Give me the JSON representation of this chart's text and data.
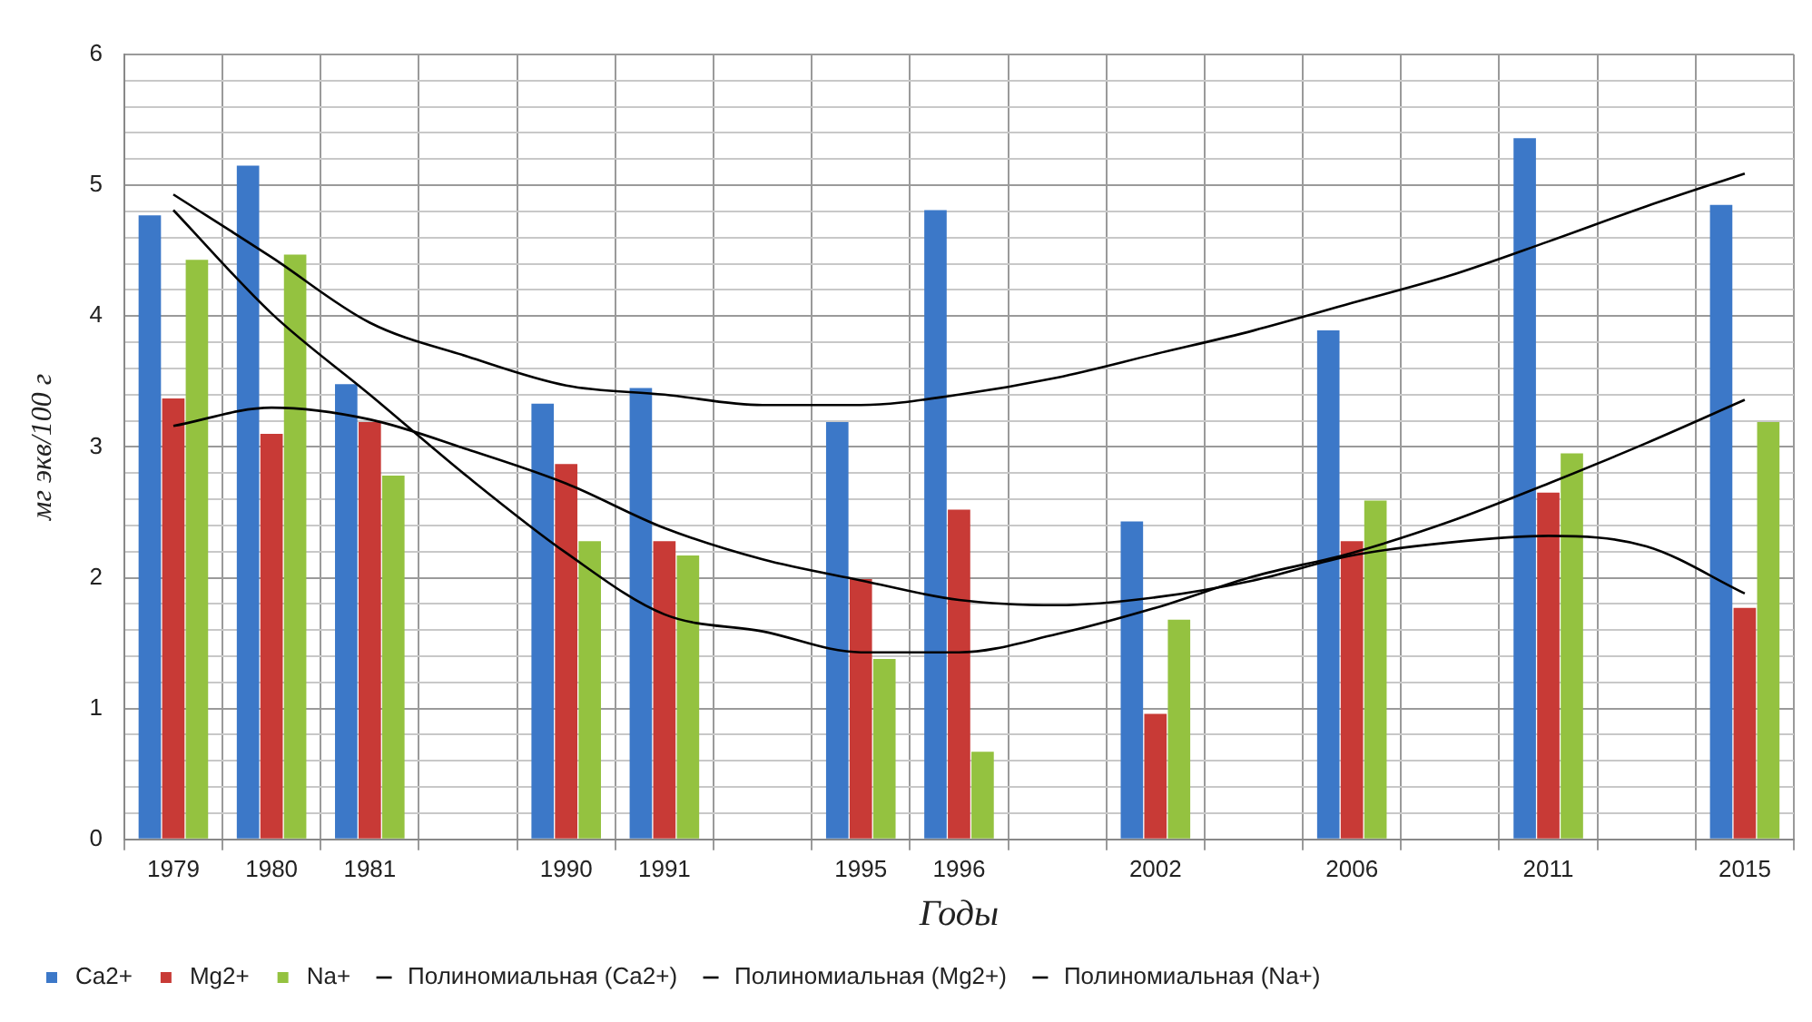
{
  "chart_data": {
    "type": "bar",
    "xlabel": "Годы",
    "ylabel": "мг экв/100 г",
    "categories": [
      "1979",
      "1980",
      "1981",
      null,
      "1990",
      "1991",
      null,
      "1995",
      "1996",
      null,
      "2002",
      null,
      "2006",
      null,
      "2011",
      null,
      "2015"
    ],
    "series": [
      {
        "name": "Ca2+",
        "color": "#3c78c8",
        "values": [
          4.77,
          5.15,
          3.48,
          null,
          3.33,
          3.45,
          null,
          3.19,
          4.81,
          null,
          2.43,
          null,
          3.89,
          null,
          5.36,
          null,
          4.85
        ]
      },
      {
        "name": "Mg2+",
        "color": "#c83a36",
        "values": [
          3.37,
          3.1,
          3.19,
          null,
          2.87,
          2.28,
          null,
          1.99,
          2.52,
          null,
          0.96,
          null,
          2.28,
          null,
          2.65,
          null,
          1.77
        ]
      },
      {
        "name": "Na+",
        "color": "#94c240",
        "values": [
          4.43,
          4.47,
          2.78,
          null,
          2.28,
          2.17,
          null,
          1.38,
          0.67,
          null,
          1.68,
          null,
          2.59,
          null,
          2.95,
          null,
          3.19
        ]
      },
      {
        "name": "Полиномиальная (Ca2+)",
        "type": "line",
        "color": "#000000",
        "values": [
          4.93,
          4.45,
          3.95,
          3.69,
          3.47,
          3.4,
          3.32,
          3.32,
          3.4,
          3.53,
          3.71,
          3.89,
          4.1,
          4.31,
          4.57,
          4.84,
          5.09
        ]
      },
      {
        "name": "Полиномиальная (Mg2+)",
        "type": "line",
        "color": "#000000",
        "values": [
          3.16,
          3.3,
          3.21,
          2.98,
          2.72,
          2.38,
          2.14,
          1.98,
          1.83,
          1.79,
          1.85,
          1.98,
          2.17,
          2.27,
          2.32,
          2.24,
          1.88
        ]
      },
      {
        "name": "Полиномиальная (Na+)",
        "type": "line",
        "color": "#000000",
        "values": [
          4.81,
          4.02,
          3.4,
          2.77,
          2.19,
          1.72,
          1.59,
          1.43,
          1.43,
          1.57,
          1.77,
          2.01,
          2.19,
          2.43,
          2.72,
          3.03,
          3.36
        ]
      }
    ],
    "ylim": [
      0,
      6
    ],
    "yticks": [
      0,
      {
        "value": 0.2,
        "label": null
      },
      {
        "value": 0.4,
        "label": null
      },
      {
        "value": 0.6,
        "label": null
      },
      {
        "value": 0.8,
        "label": null
      },
      1,
      {
        "value": 1.2,
        "label": null
      },
      {
        "value": 1.4,
        "label": null
      },
      {
        "value": 1.6,
        "label": null
      },
      {
        "value": 1.8,
        "label": null
      },
      2,
      {
        "value": 2.2,
        "label": null
      },
      {
        "value": 2.4,
        "label": null
      },
      {
        "value": 2.6,
        "label": null
      },
      {
        "value": 2.8,
        "label": null
      },
      3,
      {
        "value": 3.2,
        "label": null
      },
      {
        "value": 3.4,
        "label": null
      },
      {
        "value": 3.6,
        "label": null
      },
      {
        "value": 3.8,
        "label": null
      },
      4,
      {
        "value": 4.2,
        "label": null
      },
      {
        "value": 4.4,
        "label": null
      },
      {
        "value": 4.6,
        "label": null
      },
      {
        "value": 4.8,
        "label": null
      },
      5,
      {
        "value": 5.2,
        "label": null
      },
      {
        "value": 5.4,
        "label": null
      },
      {
        "value": 5.6,
        "label": null
      },
      {
        "value": 5.8,
        "label": null
      },
      6
    ],
    "grid": true,
    "legend": "bottom",
    "marker": "none",
    "line_style": "solid"
  }
}
